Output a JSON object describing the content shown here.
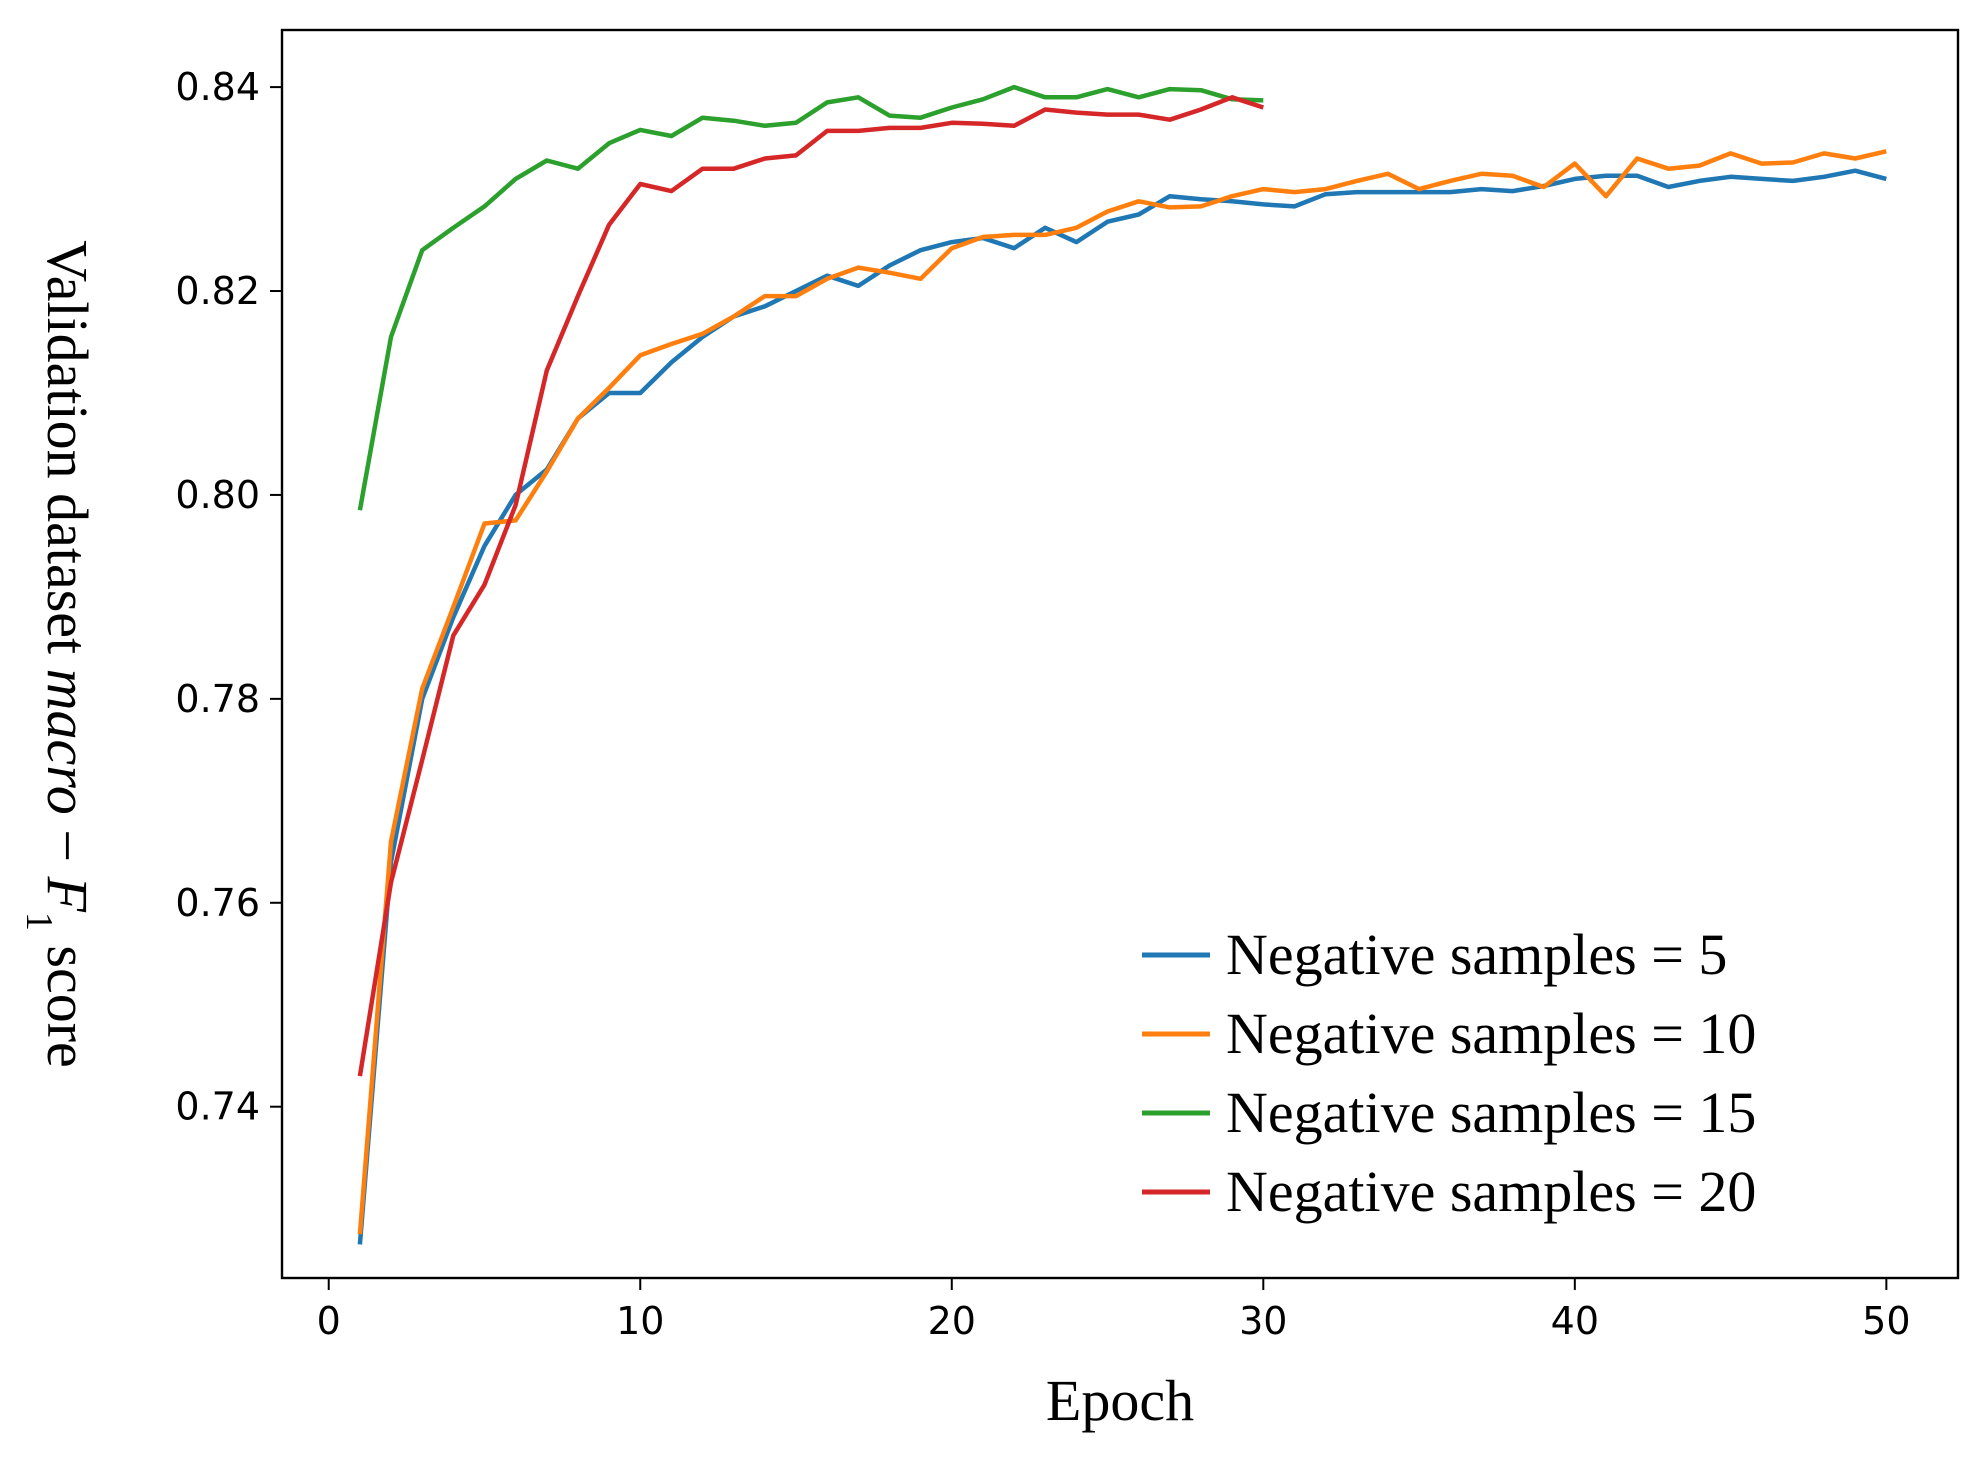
{
  "chart_data": {
    "type": "line",
    "title": "",
    "xlabel": "Epoch",
    "ylabel_parts": {
      "prefix": "Validation dataset ",
      "macro": "macro",
      "minus": " − ",
      "f": "F",
      "sub": "1",
      "suffix": " score"
    },
    "xlim": [
      -1.5,
      52.3
    ],
    "ylim": [
      0.7232,
      0.8456
    ],
    "x_ticks": [
      0,
      10,
      20,
      30,
      40,
      50
    ],
    "x_tick_labels": [
      "0",
      "10",
      "20",
      "30",
      "40",
      "50"
    ],
    "y_ticks": [
      0.74,
      0.76,
      0.78,
      0.8,
      0.82,
      0.84
    ],
    "y_tick_labels": [
      "0.74",
      "0.76",
      "0.78",
      "0.80",
      "0.82",
      "0.84"
    ],
    "grid": false,
    "legend_position": "lower-right",
    "series": [
      {
        "name": "Negative samples = 5",
        "color": "#1f77b4",
        "x": [
          1,
          2,
          3,
          4,
          5,
          6,
          7,
          8,
          9,
          10,
          11,
          12,
          13,
          14,
          15,
          16,
          17,
          18,
          19,
          20,
          21,
          22,
          23,
          24,
          25,
          26,
          27,
          28,
          29,
          30,
          31,
          32,
          33,
          34,
          35,
          36,
          37,
          38,
          39,
          40,
          41,
          42,
          43,
          44,
          45,
          46,
          47,
          48,
          49,
          50
        ],
        "values": [
          0.7265,
          0.764,
          0.78,
          0.788,
          0.795,
          0.8,
          0.8025,
          0.8075,
          0.81,
          0.81,
          0.813,
          0.8155,
          0.8175,
          0.8185,
          0.82,
          0.8215,
          0.8205,
          0.8225,
          0.824,
          0.8248,
          0.8252,
          0.8242,
          0.8262,
          0.8248,
          0.8268,
          0.8275,
          0.8293,
          0.829,
          0.8288,
          0.8285,
          0.8283,
          0.8295,
          0.8297,
          0.8297,
          0.8297,
          0.8297,
          0.83,
          0.8298,
          0.8303,
          0.831,
          0.8313,
          0.8313,
          0.8302,
          0.8308,
          0.8312,
          0.831,
          0.8308,
          0.8312,
          0.8318,
          0.831
        ]
      },
      {
        "name": "Negative samples = 10",
        "color": "#ff7f0e",
        "x": [
          1,
          2,
          3,
          4,
          5,
          6,
          7,
          8,
          9,
          10,
          11,
          12,
          13,
          14,
          15,
          16,
          17,
          18,
          19,
          20,
          21,
          22,
          23,
          24,
          25,
          26,
          27,
          28,
          29,
          30,
          31,
          32,
          33,
          34,
          35,
          36,
          37,
          38,
          39,
          40,
          41,
          42,
          43,
          44,
          45,
          46,
          47,
          48,
          49,
          50
        ],
        "values": [
          0.7275,
          0.766,
          0.781,
          0.789,
          0.7972,
          0.7975,
          0.8023,
          0.8075,
          0.8105,
          0.8137,
          0.8148,
          0.8158,
          0.8175,
          0.8195,
          0.8195,
          0.8212,
          0.8223,
          0.8218,
          0.8212,
          0.8242,
          0.8253,
          0.8255,
          0.8255,
          0.8262,
          0.8278,
          0.8288,
          0.8282,
          0.8283,
          0.8293,
          0.83,
          0.8297,
          0.83,
          0.8308,
          0.8315,
          0.83,
          0.8308,
          0.8315,
          0.8313,
          0.8302,
          0.8325,
          0.8293,
          0.833,
          0.832,
          0.8323,
          0.8335,
          0.8325,
          0.8326,
          0.8335,
          0.833,
          0.8337
        ]
      },
      {
        "name": "Negative samples = 15",
        "color": "#2ca02c",
        "x": [
          1,
          2,
          3,
          4,
          5,
          6,
          7,
          8,
          9,
          10,
          11,
          12,
          13,
          14,
          15,
          16,
          17,
          18,
          19,
          20,
          21,
          22,
          23,
          24,
          25,
          26,
          27,
          28,
          29,
          30
        ],
        "values": [
          0.7985,
          0.8155,
          0.824,
          0.8262,
          0.8283,
          0.831,
          0.8328,
          0.832,
          0.8345,
          0.8358,
          0.8352,
          0.837,
          0.8367,
          0.8362,
          0.8365,
          0.8385,
          0.839,
          0.8372,
          0.837,
          0.838,
          0.8388,
          0.84,
          0.839,
          0.839,
          0.8398,
          0.839,
          0.8398,
          0.8397,
          0.8388,
          0.8387
        ]
      },
      {
        "name": "Negative samples = 20",
        "color": "#d62728",
        "x": [
          1,
          2,
          3,
          4,
          5,
          6,
          7,
          8,
          9,
          10,
          11,
          12,
          13,
          14,
          15,
          16,
          17,
          18,
          19,
          20,
          21,
          22,
          23,
          24,
          25,
          26,
          27,
          28,
          29,
          30
        ],
        "values": [
          0.743,
          0.762,
          0.774,
          0.7862,
          0.7912,
          0.799,
          0.8122,
          0.8195,
          0.8265,
          0.8305,
          0.8298,
          0.832,
          0.832,
          0.833,
          0.8333,
          0.8357,
          0.8357,
          0.836,
          0.836,
          0.8365,
          0.8364,
          0.8362,
          0.8378,
          0.8375,
          0.8373,
          0.8373,
          0.8368,
          0.8378,
          0.839,
          0.838
        ]
      }
    ]
  }
}
